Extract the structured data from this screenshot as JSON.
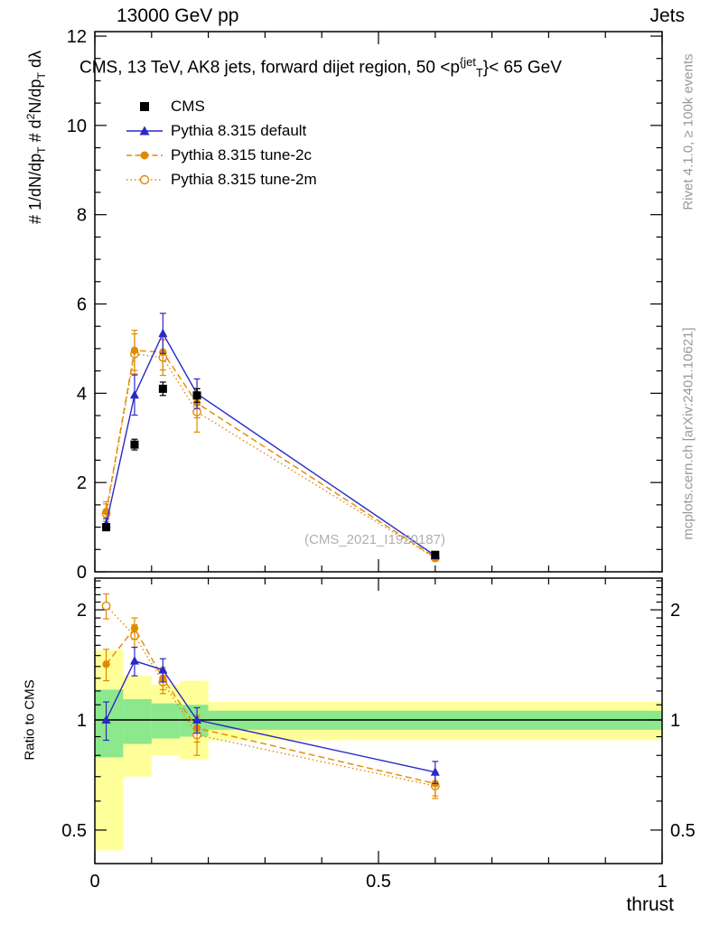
{
  "header": {
    "left": "13000 GeV pp",
    "right": "Jets"
  },
  "side_notes": {
    "top_right": "Rivet 4.1.0, ≥ 100k events",
    "bottom_right": "mcplots.cern.ch [arXiv:2401.10621]"
  },
  "watermark": "(CMS_2021_I1920187)",
  "colors": {
    "cms": "#000000",
    "pythia_default": "#2929c8",
    "pythia_tune": "#e08a00",
    "band_yellow": "#ffff99",
    "band_green": "#8ce88c",
    "gray_text": "#999999"
  },
  "chart_data": {
    "type": "line",
    "title": "CMS, 13 TeV, AK8 jets, forward dijet region, 50 < p_T^{jet} < 65 GeV",
    "title_parts": [
      {
        "t": "CMS, 13 TeV, AK8 jets, forward dijet region, 50 <p"
      },
      {
        "t": "{jet",
        "sup": true
      },
      {
        "t": "T",
        "sub": true
      },
      {
        "t": "}< 65 GeV"
      }
    ],
    "xlabel": "thrust",
    "ylabel": "# 1/dN/dp_T # d²N/dp_T dλ",
    "ylabel_parts": [
      {
        "t": "# 1/dN/dp"
      },
      {
        "t": "T",
        "sub": true
      },
      {
        "t": " # d"
      },
      {
        "t": "2",
        "sup": true
      },
      {
        "t": "N/dp"
      },
      {
        "t": "T",
        "sub": true
      },
      {
        "t": " dλ"
      }
    ],
    "ratio_ylabel": "Ratio to CMS",
    "xlim": [
      0,
      1
    ],
    "xticks": [
      0,
      0.5,
      1
    ],
    "xtick_labels": [
      "0",
      "0.5",
      "1"
    ],
    "x": [
      0.02,
      0.07,
      0.12,
      0.18,
      0.6
    ],
    "main": {
      "ylim": [
        0,
        12
      ],
      "yticks": [
        0,
        2,
        4,
        6,
        8,
        10,
        12
      ],
      "series": [
        {
          "name": "CMS",
          "marker": "square",
          "color": "#000000",
          "line": "none",
          "values": [
            1.0,
            2.85,
            4.1,
            3.95,
            0.38
          ],
          "errors": [
            0.08,
            0.12,
            0.15,
            0.15,
            0.05
          ]
        },
        {
          "name": "Pythia 8.315 default",
          "marker": "triangle",
          "color": "#2929c8",
          "line": "solid",
          "values": [
            1.07,
            3.96,
            5.34,
            3.99,
            0.36
          ],
          "errors": [
            0.12,
            0.45,
            0.45,
            0.33,
            0.06
          ]
        },
        {
          "name": "Pythia 8.315 tune-2c",
          "marker": "circle",
          "color": "#e08a00",
          "line": "dashed",
          "values": [
            1.35,
            4.96,
            4.92,
            3.78,
            0.32
          ],
          "errors": [
            0.22,
            0.45,
            0.4,
            0.33,
            0.06
          ]
        },
        {
          "name": "Pythia 8.315 tune-2m",
          "marker": "circle-open",
          "color": "#e08a00",
          "line": "dotted",
          "values": [
            1.3,
            4.88,
            4.8,
            3.58,
            0.31
          ],
          "errors": [
            0.22,
            0.45,
            0.4,
            0.45,
            0.06
          ]
        }
      ]
    },
    "ratio": {
      "ylim": [
        0.4,
        2.44
      ],
      "yticks": [
        0.5,
        1,
        2
      ],
      "series": [
        {
          "name": "Pythia 8.315 default",
          "marker": "triangle",
          "color": "#2929c8",
          "line": "solid",
          "values": [
            1.0,
            1.45,
            1.37,
            1.0,
            0.72
          ],
          "errors": [
            0.12,
            0.13,
            0.1,
            0.08,
            0.05
          ]
        },
        {
          "name": "Pythia 8.315 tune-2c",
          "marker": "circle",
          "color": "#e08a00",
          "line": "dashed",
          "values": [
            1.42,
            1.78,
            1.3,
            0.95,
            0.67
          ],
          "errors": [
            0.14,
            0.12,
            0.09,
            0.08,
            0.05
          ]
        },
        {
          "name": "Pythia 8.315 tune-2m",
          "marker": "circle-open",
          "color": "#e08a00",
          "line": "dotted",
          "values": [
            2.05,
            1.7,
            1.27,
            0.91,
            0.66
          ],
          "errors": [
            0.16,
            0.12,
            0.09,
            0.11,
            0.05
          ]
        }
      ],
      "bands": [
        {
          "x0": 0.0,
          "x1": 0.05,
          "yellow": [
            0.44,
            1.55
          ],
          "green": [
            0.79,
            1.21
          ]
        },
        {
          "x0": 0.05,
          "x1": 0.1,
          "yellow": [
            0.7,
            1.32
          ],
          "green": [
            0.86,
            1.14
          ]
        },
        {
          "x0": 0.1,
          "x1": 0.15,
          "yellow": [
            0.8,
            1.25
          ],
          "green": [
            0.89,
            1.11
          ]
        },
        {
          "x0": 0.15,
          "x1": 0.2,
          "yellow": [
            0.78,
            1.28
          ],
          "green": [
            0.9,
            1.1
          ]
        },
        {
          "x0": 0.2,
          "x1": 1.0,
          "yellow": [
            0.88,
            1.12
          ],
          "green": [
            0.94,
            1.06
          ]
        }
      ]
    }
  }
}
